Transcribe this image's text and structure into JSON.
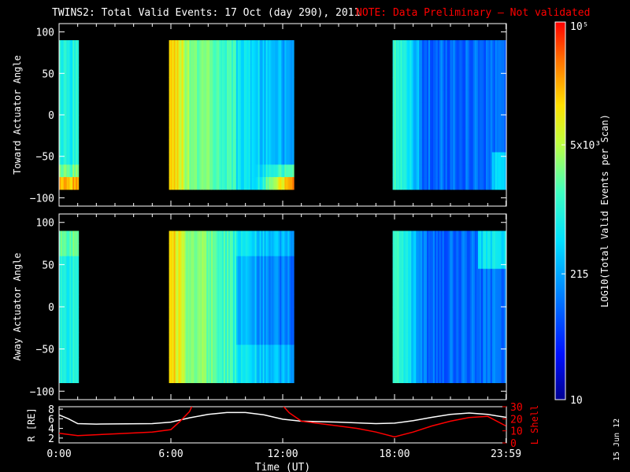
{
  "header": {
    "title": "TWINS2: Total Valid Events: 17 Oct (day 290), 2011",
    "note": "NOTE: Data Preliminary — Not validated",
    "note_color": "#ff0000"
  },
  "stamp": "15 Jun 12",
  "chart_data": [
    {
      "type": "heatmap",
      "name": "toward",
      "ylabel": "Toward Actuator Angle",
      "ylim": [
        -110,
        110
      ],
      "yticks": [
        "100",
        "50",
        "0",
        "−50",
        "−100"
      ],
      "y_range": [
        -90,
        90
      ],
      "x_range_hours": [
        0,
        24
      ],
      "data_blocks_hours": [
        [
          0.0,
          1.05
        ],
        [
          5.9,
          12.6
        ],
        [
          17.9,
          23.98
        ]
      ],
      "colormap": "rainbow (blue low → red high)"
    },
    {
      "type": "heatmap",
      "name": "away",
      "ylabel": "Away Actuator Angle",
      "ylim": [
        -110,
        110
      ],
      "yticks": [
        "100",
        "50",
        "0",
        "−50",
        "−100"
      ],
      "y_range": [
        -90,
        90
      ],
      "x_range_hours": [
        0,
        24
      ],
      "data_blocks_hours": [
        [
          0.0,
          1.05
        ],
        [
          5.9,
          12.6
        ],
        [
          17.9,
          23.98
        ]
      ],
      "colormap": "rainbow (blue low → red high)"
    },
    {
      "type": "line",
      "name": "orbit",
      "xlabel": "Time (UT)",
      "xticks": [
        "0:00",
        "6:00",
        "12:00",
        "18:00",
        "23:59"
      ],
      "xtick_hours": [
        0,
        6,
        12,
        18,
        23.98
      ],
      "left_axis": {
        "label": "R [RE]",
        "ticks": [
          "8",
          "6",
          "4",
          "2"
        ],
        "ylim": [
          1,
          8.5
        ]
      },
      "right_axis": {
        "label": "L Shell",
        "ticks": [
          "30",
          "20",
          "10",
          "0"
        ],
        "ylim": [
          0,
          30
        ],
        "color": "#ff0000"
      },
      "series": [
        {
          "axis": "left",
          "color": "#ffffff",
          "points": [
            [
              0,
              6.8
            ],
            [
              0.5,
              6.0
            ],
            [
              1,
              5.0
            ],
            [
              2,
              4.9
            ],
            [
              5,
              5.0
            ],
            [
              6,
              5.3
            ],
            [
              7,
              6.2
            ],
            [
              8,
              6.9
            ],
            [
              9,
              7.3
            ],
            [
              10,
              7.3
            ],
            [
              11,
              6.8
            ],
            [
              12,
              5.9
            ],
            [
              13,
              5.5
            ],
            [
              15,
              5.3
            ],
            [
              17,
              5.0
            ],
            [
              18,
              5.1
            ],
            [
              19,
              5.6
            ],
            [
              20,
              6.3
            ],
            [
              21,
              6.9
            ],
            [
              22,
              7.2
            ],
            [
              23,
              6.9
            ],
            [
              23.98,
              6.3
            ]
          ]
        },
        {
          "axis": "right",
          "color": "#ff0000",
          "points": [
            [
              0,
              8
            ],
            [
              0.5,
              7
            ],
            [
              1,
              6
            ],
            [
              3,
              7.5
            ],
            [
              5,
              9
            ],
            [
              6,
              11
            ],
            [
              6.5,
              18
            ],
            [
              7,
              26
            ],
            [
              7.15,
              31
            ],
            [
              12,
              31
            ],
            [
              12.35,
              25
            ],
            [
              13,
              18
            ],
            [
              14,
              16
            ],
            [
              15,
              14
            ],
            [
              16,
              12
            ],
            [
              17,
              9
            ],
            [
              18,
              5
            ],
            [
              19,
              9
            ],
            [
              20,
              14
            ],
            [
              21,
              18
            ],
            [
              22,
              21
            ],
            [
              23,
              22
            ],
            [
              23.98,
              14
            ]
          ]
        }
      ]
    },
    {
      "type": "colorbar",
      "label": "LOG10(Total Valid Events per Scan)",
      "scale": "log",
      "range": [
        10,
        100000
      ],
      "ticks": [
        "10⁵",
        "5x10³",
        "215",
        "10"
      ],
      "tick_values": [
        100000,
        5000,
        215,
        10
      ]
    }
  ]
}
